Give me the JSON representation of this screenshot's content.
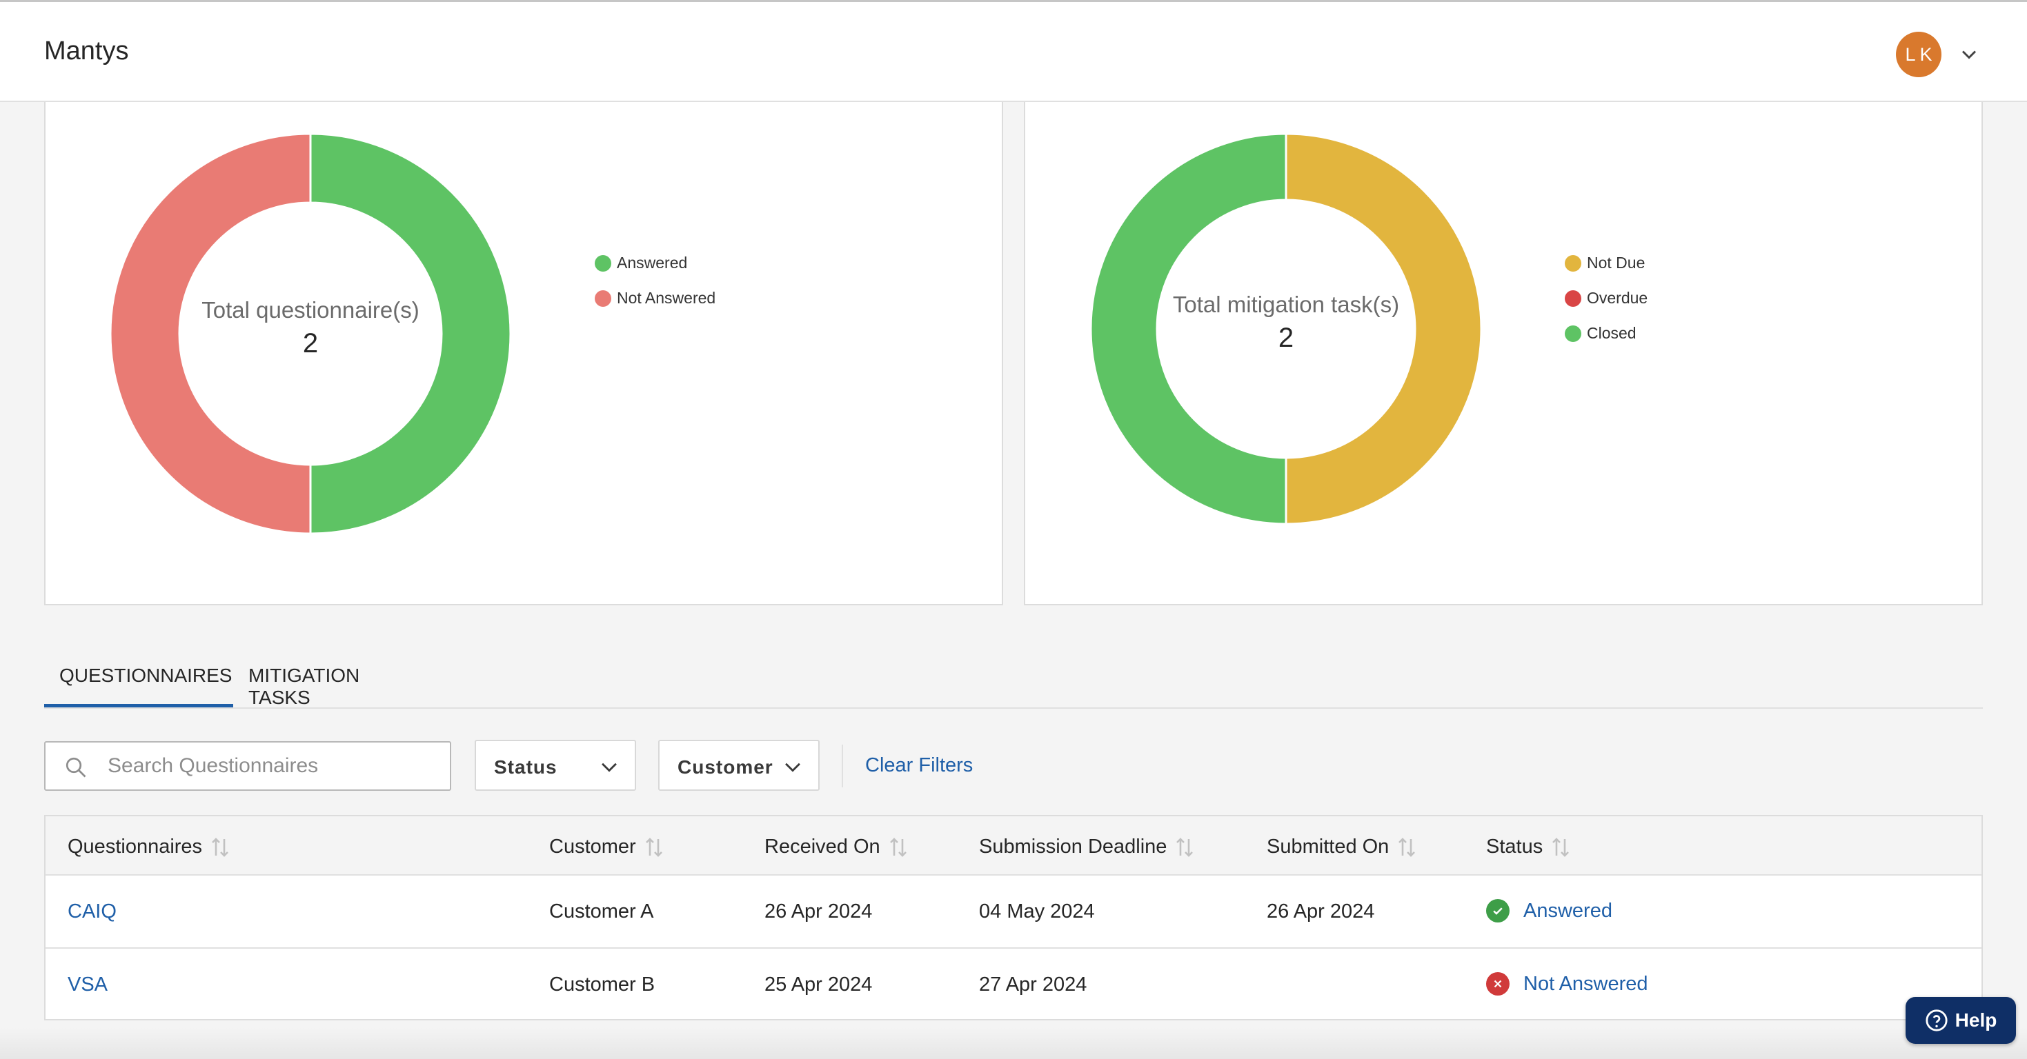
{
  "header": {
    "app_title": "Mantys",
    "avatar_initials": "LK"
  },
  "questionnaire_chart": {
    "center_label": "Total questionnaire(s)",
    "total": "2",
    "legend": [
      {
        "label": "Answered",
        "color": "#5ec364"
      },
      {
        "label": "Not Answered",
        "color": "#e97b74"
      }
    ]
  },
  "mitigation_chart": {
    "center_label": "Total mitigation task(s)",
    "total": "2",
    "legend": [
      {
        "label": "Not Due",
        "color": "#e2b53e"
      },
      {
        "label": "Overdue",
        "color": "#d94545"
      },
      {
        "label": "Closed",
        "color": "#5ec364"
      }
    ]
  },
  "chart_data": [
    {
      "type": "pie",
      "title": "",
      "categories": [
        "Answered",
        "Not Answered"
      ],
      "values": [
        1,
        1
      ],
      "colors": [
        "#5ec364",
        "#e97b74"
      ],
      "legend": "right"
    },
    {
      "type": "pie",
      "title": "",
      "categories": [
        "Not Due",
        "Overdue",
        "Closed"
      ],
      "values": [
        1,
        0,
        1
      ],
      "colors": [
        "#e2b53e",
        "#d94545",
        "#5ec364"
      ],
      "legend": "right"
    }
  ],
  "tabs": [
    {
      "label": "QUESTIONNAIRES",
      "active": true
    },
    {
      "label": "MITIGATION TASKS",
      "active": false
    }
  ],
  "filters": {
    "search_placeholder": "Search Questionnaires",
    "search_value": "",
    "status_label": "Status",
    "customer_label": "Customer",
    "clear_label": "Clear Filters"
  },
  "table": {
    "columns": [
      "Questionnaires",
      "Customer",
      "Received On",
      "Submission Deadline",
      "Submitted On",
      "Status"
    ],
    "rows": [
      {
        "questionnaire": "CAIQ",
        "customer": "Customer A",
        "received_on": "26 Apr 2024",
        "deadline": "04 May 2024",
        "submitted_on": "26 Apr 2024",
        "status": "Answered",
        "status_color": "#3e9e48"
      },
      {
        "questionnaire": "VSA",
        "customer": "Customer B",
        "received_on": "25 Apr 2024",
        "deadline": "27 Apr 2024",
        "submitted_on": "",
        "status": "Not Answered",
        "status_color": "#d03a3a"
      }
    ]
  },
  "help": {
    "label": "Help"
  },
  "icons": {
    "avatar_menu": "chevron-down-icon",
    "search": "search-icon",
    "sort": "sort-icon",
    "answered": "check-circle-icon",
    "not_answered": "x-circle-icon",
    "help": "question-circle-icon"
  }
}
